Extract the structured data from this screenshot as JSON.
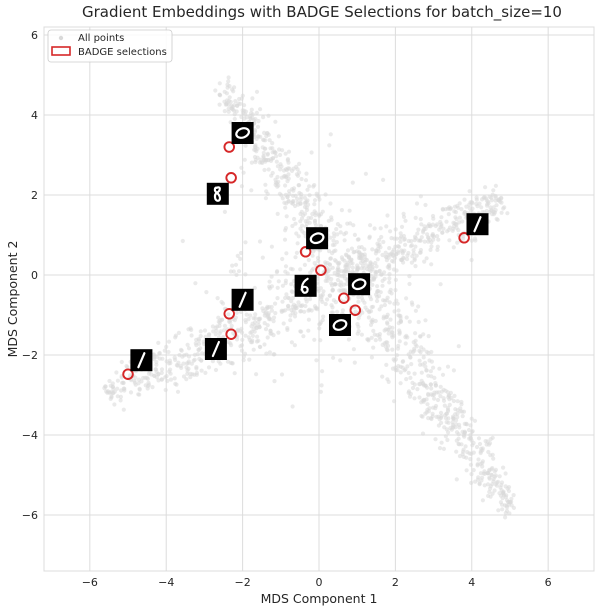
{
  "chart_data": {
    "type": "scatter",
    "title": "Gradient Embeddings with BADGE Selections for batch_size=10",
    "xlabel": "MDS Component 1",
    "ylabel": "MDS Component 2",
    "xlim": [
      -7.2,
      7.2
    ],
    "ylim": [
      -7.4,
      6.2
    ],
    "xticks": [
      -6,
      -4,
      -2,
      0,
      2,
      4,
      6
    ],
    "yticks": [
      -6,
      -4,
      -2,
      0,
      2,
      4,
      6
    ],
    "xtick_labels": [
      "−6",
      "−4",
      "−2",
      "0",
      "2",
      "4",
      "6"
    ],
    "ytick_labels": [
      "−6",
      "−4",
      "−2",
      "0",
      "2",
      "4",
      "6"
    ],
    "grid": true,
    "legend_position": "top-left",
    "series": [
      {
        "name": "All points",
        "color": "#d9d9d9",
        "marker": "dot",
        "distribution": "dense gray cloud forming two crossing elongated bands: one from about (-5.5, -3) through (0, 0) to (4.5, 1.8); the other from about (-2.5, 4.5) through (0, 0) to (5, -6)"
      },
      {
        "name": "BADGE selections",
        "color": "#d62728",
        "marker": "hollow-circle",
        "points": [
          {
            "x": -2.35,
            "y": 3.2,
            "digit": "0"
          },
          {
            "x": -2.3,
            "y": 2.43,
            "digit": "8"
          },
          {
            "x": -0.35,
            "y": 0.58,
            "digit": "0"
          },
          {
            "x": 0.05,
            "y": 0.12,
            "digit": "6"
          },
          {
            "x": 0.65,
            "y": -0.58,
            "digit": "0"
          },
          {
            "x": 0.95,
            "y": -0.88,
            "digit": "0"
          },
          {
            "x": -2.35,
            "y": -0.97,
            "digit": "1"
          },
          {
            "x": -2.3,
            "y": -1.48,
            "digit": "1"
          },
          {
            "x": -5.0,
            "y": -2.48,
            "digit": "1"
          },
          {
            "x": 3.8,
            "y": 0.93,
            "digit": "1"
          }
        ]
      }
    ]
  },
  "thumbnails": [
    {
      "digit": "0",
      "x": -2.0,
      "y": 3.55
    },
    {
      "digit": "8",
      "x": -2.65,
      "y": 2.03
    },
    {
      "digit": "0",
      "x": -0.05,
      "y": 0.92
    },
    {
      "digit": "6",
      "x": -0.35,
      "y": -0.27
    },
    {
      "digit": "0",
      "x": 1.05,
      "y": -0.23
    },
    {
      "digit": "0",
      "x": 0.55,
      "y": -1.25
    },
    {
      "digit": "1",
      "x": -2.0,
      "y": -0.62
    },
    {
      "digit": "1",
      "x": -2.7,
      "y": -1.85
    },
    {
      "digit": "1",
      "x": -4.65,
      "y": -2.13
    },
    {
      "digit": "1",
      "x": 4.15,
      "y": 1.27
    }
  ]
}
